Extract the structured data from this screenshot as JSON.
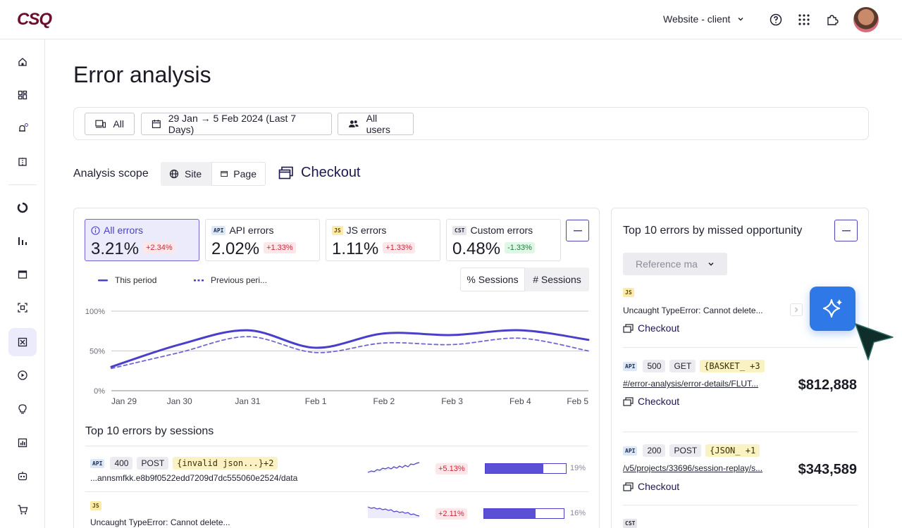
{
  "brand": {
    "logo_text": "CSQ"
  },
  "topbar": {
    "site_selector": "Website - client"
  },
  "page": {
    "title": "Error analysis"
  },
  "filters": {
    "device": "All",
    "date_range": "29 Jan → 5 Feb 2024 (Last 7 Days)",
    "users": "All users"
  },
  "scope": {
    "label": "Analysis scope",
    "site": "Site",
    "page": "Page",
    "current_page": "Checkout"
  },
  "metrics": [
    {
      "label": "All errors",
      "value": "3.21%",
      "delta": "+2.34%",
      "trend": "red"
    },
    {
      "label": "API errors",
      "badge": "API",
      "value": "2.02%",
      "delta": "+1.33%",
      "trend": "red"
    },
    {
      "label": "JS errors",
      "badge": "JS",
      "value": "1.11%",
      "delta": "+1.33%",
      "trend": "red"
    },
    {
      "label": "Custom errors",
      "badge": "CST",
      "value": "0.48%",
      "delta": "-1.33%",
      "trend": "green"
    }
  ],
  "legend": {
    "this_period": "This period",
    "previous_period": "Previous peri..."
  },
  "toggle": {
    "percent": "% Sessions",
    "count": "# Sessions"
  },
  "chart_data": {
    "type": "line",
    "x": [
      "Jan 29",
      "Jan 30",
      "Jan 31",
      "Feb 1",
      "Feb 2",
      "Feb 3",
      "Feb 4",
      "Feb 5"
    ],
    "y_ticks": [
      "100%",
      "50%",
      "0%"
    ],
    "ylim": [
      0,
      100
    ],
    "series": [
      {
        "name": "This period",
        "style": "solid",
        "color": "#4a3fc9",
        "values": [
          30,
          58,
          76,
          54,
          72,
          70,
          76,
          64
        ]
      },
      {
        "name": "Previous peri...",
        "style": "dashed",
        "color": "#6f66d6",
        "values": [
          28,
          48,
          68,
          48,
          60,
          58,
          66,
          50
        ]
      }
    ],
    "grid": true
  },
  "sessions_table": {
    "title": "Top 10 errors by sessions",
    "rows": [
      {
        "badge": "API",
        "tags": [
          "400",
          "POST"
        ],
        "code": "{invalid json...}+2",
        "text": "...annsmfkk.e8b9f0522edd7209d7dc555060e2524/data",
        "change": "+5.13%",
        "pct": "19%",
        "fill": 0.72
      },
      {
        "badge": "JS",
        "tags": [],
        "code": "",
        "text": "Uncaught TypeError: Cannot delete...",
        "change": "+2.11%",
        "pct": "16%",
        "fill": 0.65
      }
    ]
  },
  "opportunity": {
    "title": "Top 10 errors by missed opportunity",
    "reference": "Reference ma",
    "items": [
      {
        "badge": "JS",
        "text": "Uncaught TypeError: Cannot delete...",
        "page": "Checkout"
      },
      {
        "badge": "API",
        "tags": [
          "500",
          "GET"
        ],
        "code": "{BASKET_ +3",
        "text": "#/error-analysis/error-details/FLUT...",
        "page": "Checkout",
        "amount": "$812,888"
      },
      {
        "badge": "API",
        "tags": [
          "200",
          "POST"
        ],
        "code": "{JSON_ +1",
        "text": "/v5/projects/33696/session-replay/s...",
        "page": "Checkout",
        "amount": "$343,589"
      },
      {
        "badge": "CST"
      }
    ]
  },
  "colors": {
    "accent": "#4a3fc9",
    "brand": "#6b0f2b",
    "ai": "#2f78e8"
  }
}
